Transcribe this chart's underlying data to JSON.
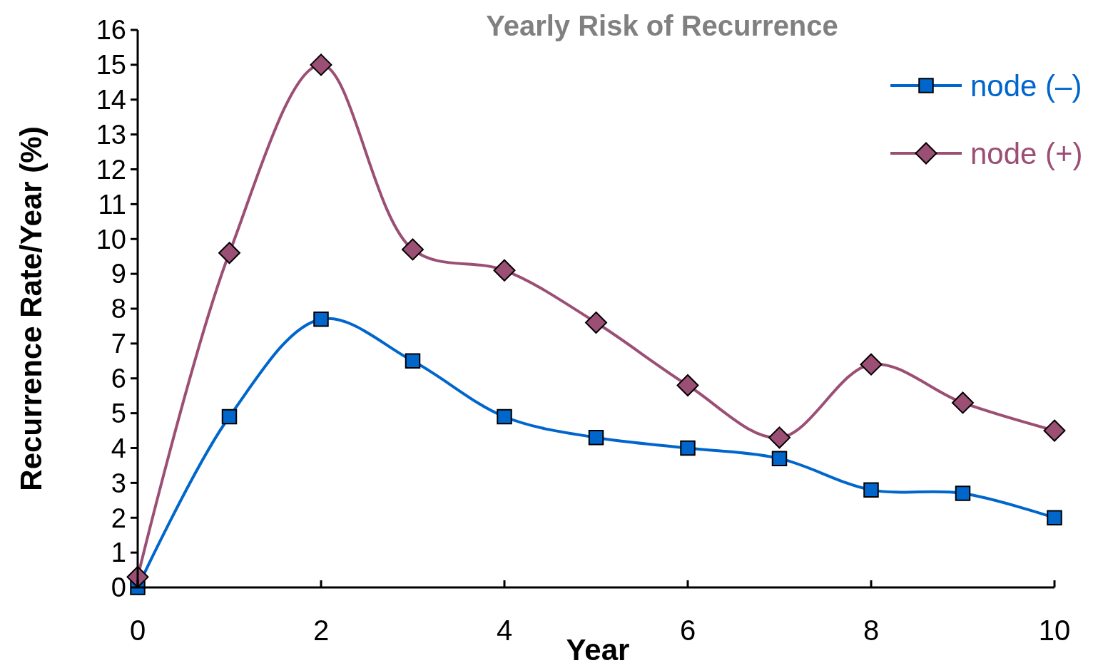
{
  "chart_data": {
    "type": "line",
    "title": "Yearly Risk of Recurrence",
    "xlabel": "Year",
    "ylabel": "Recurrence Rate/Year (%)",
    "x": [
      0,
      1,
      2,
      3,
      4,
      5,
      6,
      7,
      8,
      9,
      10
    ],
    "series": [
      {
        "name": "node (–)",
        "color": "#0066cc",
        "marker": "square",
        "values": [
          0,
          4.9,
          7.7,
          6.5,
          4.9,
          4.3,
          4.0,
          3.7,
          2.8,
          2.7,
          2.0
        ]
      },
      {
        "name": "node (+)",
        "color": "#9b4f74",
        "marker": "diamond",
        "values": [
          0.3,
          9.6,
          15.0,
          9.7,
          9.1,
          7.6,
          5.8,
          4.3,
          6.4,
          5.3,
          4.5
        ]
      }
    ],
    "xlim": [
      0,
      10
    ],
    "xticks": [
      0,
      2,
      4,
      6,
      8,
      10
    ],
    "ylim": [
      0,
      16
    ],
    "yticks": [
      0,
      1,
      2,
      3,
      4,
      5,
      6,
      7,
      8,
      9,
      10,
      11,
      12,
      13,
      14,
      15,
      16
    ],
    "grid": false,
    "legend": "top right",
    "line_style": "solid"
  }
}
